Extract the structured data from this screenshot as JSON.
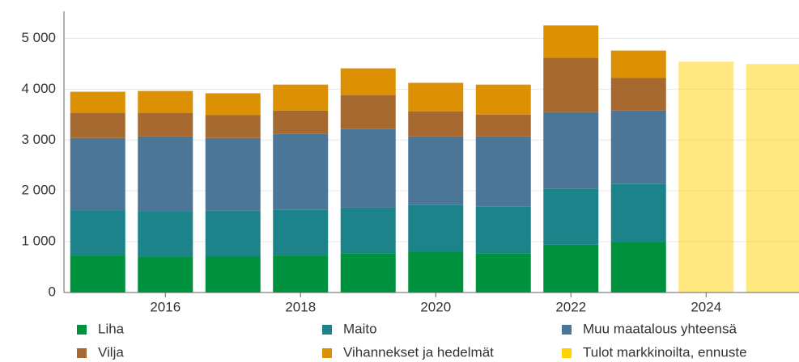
{
  "chart_data": {
    "type": "stacked_bar",
    "categories": [
      null,
      "2016",
      null,
      "2018",
      null,
      "2020",
      null,
      "2022",
      null,
      "2024",
      null
    ],
    "series": [
      {
        "name": "Liha",
        "color": "#00913f",
        "values": [
          730,
          700,
          715,
          730,
          765,
          810,
          765,
          940,
          1000,
          null,
          null
        ]
      },
      {
        "name": "Maito",
        "color": "#1b8389",
        "values": [
          890,
          890,
          895,
          895,
          905,
          910,
          925,
          1100,
          1135,
          null,
          null
        ]
      },
      {
        "name": "Muu maatalous yhteensä",
        "color": "#4b7697",
        "values": [
          1420,
          1480,
          1430,
          1495,
          1545,
          1350,
          1380,
          1510,
          1445,
          null,
          null
        ]
      },
      {
        "name": "Vilja",
        "color": "#a6692f",
        "values": [
          495,
          465,
          450,
          460,
          670,
          495,
          430,
          1070,
          640,
          null,
          null
        ]
      },
      {
        "name": "Vihannekset ja hedelmät",
        "color": "#dc9105",
        "values": [
          415,
          430,
          430,
          510,
          525,
          560,
          590,
          635,
          540,
          null,
          null
        ]
      },
      {
        "name": "Tulot markkinoilta, ennuste",
        "color": "#ffd200",
        "values": [
          null,
          null,
          null,
          null,
          null,
          null,
          null,
          null,
          null,
          4540,
          4495
        ]
      }
    ],
    "ylim": [
      0,
      5500
    ],
    "yticks": [
      0,
      {
        "value": 1000,
        "label": "1 000"
      },
      {
        "value": 2000,
        "label": "2 000"
      },
      {
        "value": 3000,
        "label": "3 000"
      },
      {
        "value": 4000,
        "label": "4 000"
      },
      {
        "value": 5000,
        "label": "5 000"
      }
    ],
    "grid": true
  }
}
